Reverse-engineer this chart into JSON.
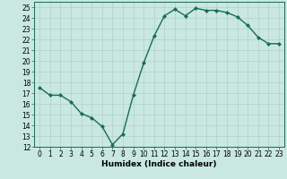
{
  "x": [
    0,
    1,
    2,
    3,
    4,
    5,
    6,
    7,
    8,
    9,
    10,
    11,
    12,
    13,
    14,
    15,
    16,
    17,
    18,
    19,
    20,
    21,
    22,
    23
  ],
  "y": [
    17.5,
    16.8,
    16.8,
    16.2,
    15.1,
    14.7,
    13.9,
    12.2,
    13.2,
    16.8,
    19.8,
    22.3,
    24.2,
    24.8,
    24.2,
    24.9,
    24.7,
    24.7,
    24.5,
    24.1,
    23.3,
    22.2,
    21.6,
    21.6
  ],
  "line_color": "#1a6b5a",
  "marker": "D",
  "marker_size": 2.0,
  "bg_color": "#c8e8e0",
  "grid_color": "#b0d0c8",
  "xlabel": "Humidex (Indice chaleur)",
  "ylabel": "",
  "xlim": [
    -0.5,
    23.5
  ],
  "ylim": [
    12,
    25.5
  ],
  "yticks": [
    12,
    13,
    14,
    15,
    16,
    17,
    18,
    19,
    20,
    21,
    22,
    23,
    24,
    25
  ],
  "xticks": [
    0,
    1,
    2,
    3,
    4,
    5,
    6,
    7,
    8,
    9,
    10,
    11,
    12,
    13,
    14,
    15,
    16,
    17,
    18,
    19,
    20,
    21,
    22,
    23
  ],
  "tick_fontsize": 5.5,
  "label_fontsize": 6.5,
  "line_width": 1.0
}
